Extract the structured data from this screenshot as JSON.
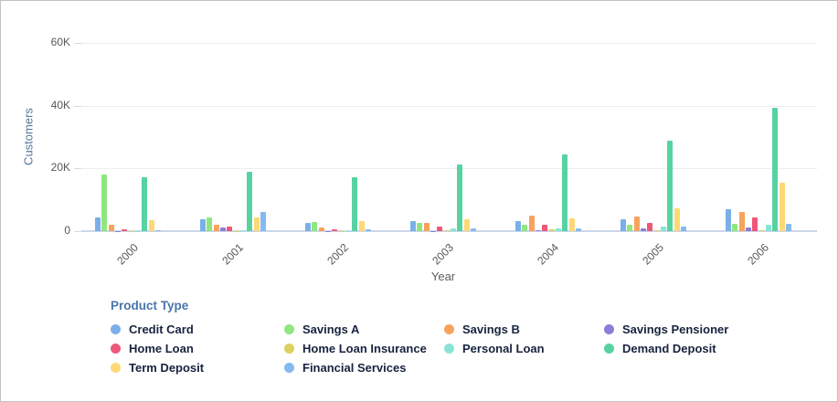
{
  "chart_data": {
    "type": "bar",
    "title": "",
    "xlabel": "Year",
    "ylabel": "Customers",
    "legend_title": "Product Type",
    "legend_position": "bottom",
    "grid": true,
    "ylim": [
      0,
      60000
    ],
    "yticks": [
      {
        "value": 0,
        "label": "0"
      },
      {
        "value": 20000,
        "label": "20K"
      },
      {
        "value": 40000,
        "label": "40K"
      },
      {
        "value": 60000,
        "label": "60K"
      }
    ],
    "categories": [
      "2000",
      "2001",
      "2002",
      "2003",
      "2004",
      "2005",
      "2006"
    ],
    "series": [
      {
        "name": "Credit Card",
        "color": "#79b0e8",
        "values": [
          4400,
          3800,
          2600,
          3200,
          3200,
          3800,
          7000
        ]
      },
      {
        "name": "Savings A",
        "color": "#8fe67f",
        "values": [
          18000,
          4400,
          3000,
          2600,
          2100,
          2100,
          2300
        ]
      },
      {
        "name": "Savings B",
        "color": "#f7a35c",
        "values": [
          2100,
          2000,
          1200,
          2700,
          4900,
          4700,
          6100
        ]
      },
      {
        "name": "Savings Pensioner",
        "color": "#8a7fd8",
        "values": [
          100,
          1200,
          100,
          100,
          200,
          800,
          1200
        ]
      },
      {
        "name": "Home Loan",
        "color": "#ed5878",
        "values": [
          600,
          1500,
          700,
          1500,
          2000,
          2600,
          4300
        ]
      },
      {
        "name": "Home Loan Insurance",
        "color": "#ddd05e",
        "values": [
          100,
          100,
          100,
          200,
          600,
          200,
          300
        ]
      },
      {
        "name": "Personal Loan",
        "color": "#88e5d5",
        "values": [
          100,
          200,
          100,
          800,
          900,
          1500,
          2000
        ]
      },
      {
        "name": "Demand Deposit",
        "color": "#57d3a1",
        "values": [
          17200,
          19000,
          17100,
          21200,
          24600,
          28700,
          39400
        ]
      },
      {
        "name": "Term Deposit",
        "color": "#fcd877",
        "values": [
          3600,
          4400,
          3300,
          3800,
          4200,
          7300,
          15400
        ]
      },
      {
        "name": "Financial Services",
        "color": "#86baee",
        "values": [
          200,
          6100,
          600,
          900,
          900,
          1400,
          2300
        ]
      }
    ]
  }
}
